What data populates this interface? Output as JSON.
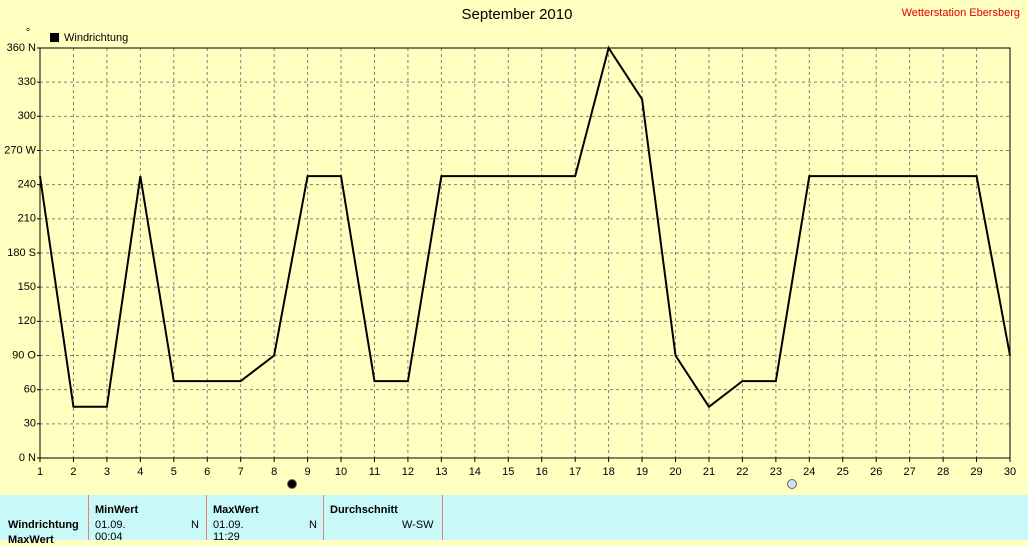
{
  "station": "Wetterstation Ebersberg",
  "chart_data": {
    "type": "line",
    "title": "September 2010",
    "y_unit": "°",
    "x": [
      1,
      2,
      3,
      4,
      5,
      6,
      7,
      8,
      9,
      10,
      11,
      12,
      13,
      14,
      15,
      16,
      17,
      18,
      19,
      20,
      21,
      22,
      23,
      24,
      25,
      26,
      27,
      28,
      29,
      30
    ],
    "xlim": [
      1,
      30
    ],
    "xticks": [
      1,
      2,
      3,
      4,
      5,
      6,
      7,
      8,
      9,
      10,
      11,
      12,
      13,
      14,
      15,
      16,
      17,
      18,
      19,
      20,
      21,
      22,
      23,
      24,
      25,
      26,
      27,
      28,
      29,
      30
    ],
    "ylim": [
      0,
      360
    ],
    "yticks": [
      {
        "value": 0,
        "label": "0 N"
      },
      30,
      60,
      {
        "value": 90,
        "label": "90 O"
      },
      120,
      150,
      {
        "value": 180,
        "label": "180 S"
      },
      210,
      240,
      {
        "value": 270,
        "label": "270 W"
      },
      300,
      330,
      {
        "value": 360,
        "label": "360 N"
      }
    ],
    "grid": true,
    "series": [
      {
        "name": "Windrichtung",
        "color": "#000000",
        "values": [
          247.5,
          45,
          45,
          247.5,
          67.5,
          67.5,
          67.5,
          90,
          247.5,
          247.5,
          67.5,
          67.5,
          247.5,
          247.5,
          247.5,
          247.5,
          247.5,
          360,
          315,
          90,
          45,
          67.5,
          67.5,
          247.5,
          247.5,
          247.5,
          247.5,
          247.5,
          247.5,
          90
        ]
      }
    ]
  },
  "summary": {
    "headers": [
      "MinWert",
      "MaxWert",
      "Durchschnitt"
    ],
    "rows": [
      {
        "label": "Windrichtung",
        "min_time": "01.09.  00:04",
        "min_dir": "N",
        "max_time": "01.09.  11:29",
        "max_dir": "N",
        "avg": "W-SW"
      },
      {
        "label": "MaxWert"
      }
    ]
  }
}
